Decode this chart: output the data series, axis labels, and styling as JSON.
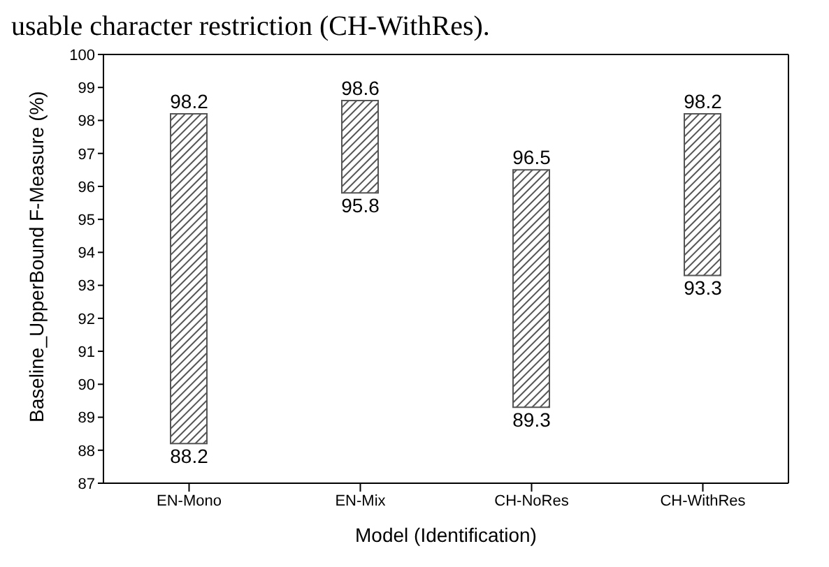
{
  "chart_data": {
    "type": "bar",
    "xlabel": "Model (Identification)",
    "ylabel": "Baseline_UpperBound F-Measure (%)",
    "categories": [
      "EN-Mono",
      "EN-Mix",
      "CH-NoRes",
      "CH-WithRes"
    ],
    "base": [
      88.2,
      95.8,
      89.3,
      93.3
    ],
    "values": [
      10.0,
      2.8,
      7.2,
      4.9
    ],
    "color": "#555555",
    "ylim": [
      87,
      100
    ],
    "yticks": [
      87,
      88,
      89,
      90,
      91,
      92,
      93,
      94,
      95,
      96,
      97,
      98,
      99,
      100
    ],
    "grid": false,
    "legend": false,
    "annotations": [
      "usable character restriction (CH-WithRes).",
      {
        "text": "98.2",
        "x": "EN-Mono",
        "y": 98.2
      },
      {
        "text": "88.2",
        "x": "EN-Mono",
        "y": 88.2
      },
      {
        "text": "98.6",
        "x": "EN-Mix",
        "y": 98.6
      },
      {
        "text": "95.8",
        "x": "EN-Mix",
        "y": 95.8
      },
      {
        "text": "96.5",
        "x": "CH-NoRes",
        "y": 96.5
      },
      {
        "text": "89.3",
        "x": "CH-NoRes",
        "y": 89.3
      },
      {
        "text": "98.2",
        "x": "CH-WithRes",
        "y": 98.2
      },
      {
        "text": "93.3",
        "x": "CH-WithRes",
        "y": 93.3
      }
    ]
  }
}
